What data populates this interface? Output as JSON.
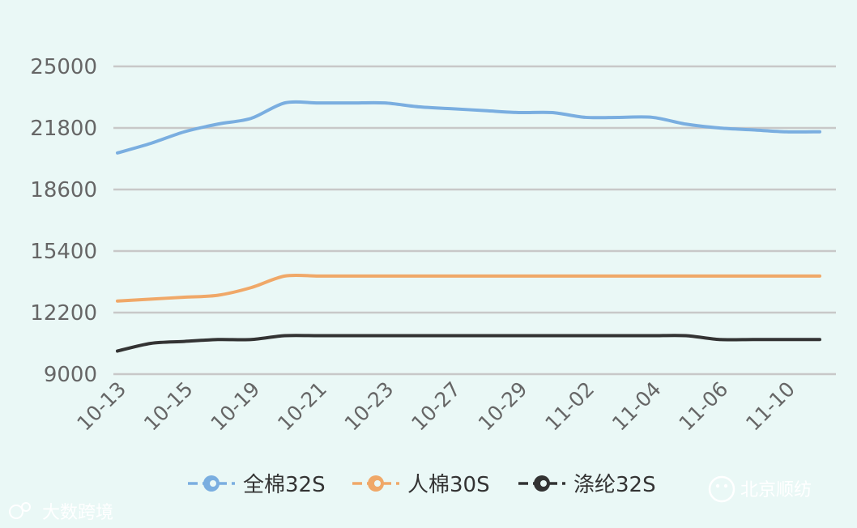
{
  "chart_data": {
    "type": "line",
    "categories": [
      "10-13",
      "10-14",
      "10-15",
      "10-16",
      "10-19",
      "10-20",
      "10-21",
      "10-22",
      "10-23",
      "10-26",
      "10-27",
      "10-28",
      "10-29",
      "10-30",
      "11-02",
      "11-03",
      "11-04",
      "11-05",
      "11-06",
      "11-09",
      "11-10",
      "11-11"
    ],
    "x_tick_labels": [
      "10-13",
      "10-15",
      "10-19",
      "10-21",
      "10-23",
      "10-27",
      "10-29",
      "11-02",
      "11-04",
      "11-06",
      "11-10"
    ],
    "y_ticks": [
      9000,
      12200,
      15400,
      18600,
      21800,
      25000
    ],
    "ylim": [
      9000,
      25000
    ],
    "grid": true,
    "legend_position": "bottom",
    "series": [
      {
        "name": "全棉32S",
        "color": "#7aaee0",
        "values": [
          20500,
          21000,
          21600,
          22000,
          22300,
          23100,
          23100,
          23100,
          23100,
          22900,
          22800,
          22700,
          22600,
          22600,
          22350,
          22350,
          22350,
          22000,
          21800,
          21700,
          21600,
          21600
        ]
      },
      {
        "name": "人棉30S",
        "color": "#f0a868",
        "values": [
          12800,
          12900,
          13000,
          13100,
          13500,
          14100,
          14100,
          14100,
          14100,
          14100,
          14100,
          14100,
          14100,
          14100,
          14100,
          14100,
          14100,
          14100,
          14100,
          14100,
          14100,
          14100
        ]
      },
      {
        "name": "涤纶32S",
        "color": "#333333",
        "values": [
          10200,
          10600,
          10700,
          10800,
          10800,
          11000,
          11000,
          11000,
          11000,
          11000,
          11000,
          11000,
          11000,
          11000,
          11000,
          11000,
          11000,
          11000,
          10800,
          10800,
          10800,
          10800
        ]
      }
    ]
  },
  "watermarks": {
    "left": "大数跨境",
    "right": "北京顺纺"
  }
}
